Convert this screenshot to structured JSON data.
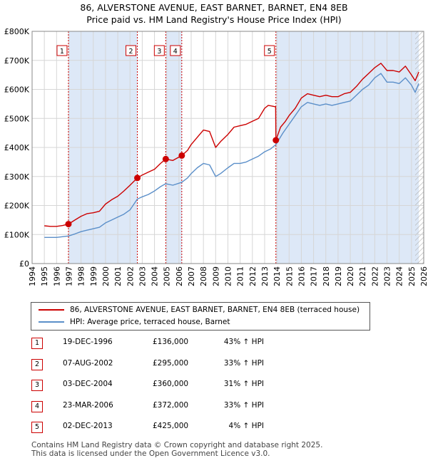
{
  "chart_data": {
    "type": "line",
    "title": "86, ALVERSTONE AVENUE, EAST BARNET, BARNET, EN4 8EB",
    "subtitle": "Price paid vs. HM Land Registry's House Price Index (HPI)",
    "xlim": [
      1994,
      2026
    ],
    "ylim": [
      0,
      800000
    ],
    "x_ticks": [
      1994,
      1995,
      1996,
      1997,
      1998,
      1999,
      2000,
      2001,
      2002,
      2003,
      2004,
      2005,
      2006,
      2007,
      2008,
      2009,
      2010,
      2011,
      2012,
      2013,
      2014,
      2015,
      2016,
      2017,
      2018,
      2019,
      2020,
      2021,
      2022,
      2023,
      2024,
      2025,
      2026
    ],
    "y_ticks": [
      {
        "value": 0,
        "label": "£0"
      },
      {
        "value": 100000,
        "label": "£100K"
      },
      {
        "value": 200000,
        "label": "£200K"
      },
      {
        "value": 300000,
        "label": "£300K"
      },
      {
        "value": 400000,
        "label": "£400K"
      },
      {
        "value": 500000,
        "label": "£500K"
      },
      {
        "value": 600000,
        "label": "£600K"
      },
      {
        "value": 700000,
        "label": "£700K"
      },
      {
        "value": 800000,
        "label": "£800K"
      }
    ],
    "series": [
      {
        "name": "86, ALVERSTONE AVENUE, EAST BARNET, BARNET, EN4 8EB (terraced house)",
        "color": "#cc0000",
        "points": [
          [
            1995.0,
            130000
          ],
          [
            1995.5,
            128000
          ],
          [
            1996.0,
            128000
          ],
          [
            1996.5,
            131000
          ],
          [
            1996.97,
            136000
          ],
          [
            1997.5,
            150000
          ],
          [
            1998.0,
            163000
          ],
          [
            1998.5,
            172000
          ],
          [
            1999.0,
            175000
          ],
          [
            1999.5,
            180000
          ],
          [
            2000.0,
            205000
          ],
          [
            2000.5,
            220000
          ],
          [
            2001.0,
            232000
          ],
          [
            2001.5,
            250000
          ],
          [
            2002.0,
            270000
          ],
          [
            2002.6,
            295000
          ],
          [
            2003.0,
            305000
          ],
          [
            2003.5,
            315000
          ],
          [
            2004.0,
            325000
          ],
          [
            2004.5,
            345000
          ],
          [
            2004.92,
            360000
          ],
          [
            2005.5,
            355000
          ],
          [
            2006.23,
            372000
          ],
          [
            2006.7,
            390000
          ],
          [
            2007.0,
            410000
          ],
          [
            2007.5,
            435000
          ],
          [
            2008.0,
            460000
          ],
          [
            2008.5,
            455000
          ],
          [
            2009.0,
            400000
          ],
          [
            2009.4,
            420000
          ],
          [
            2010.0,
            445000
          ],
          [
            2010.5,
            470000
          ],
          [
            2011.0,
            475000
          ],
          [
            2011.5,
            480000
          ],
          [
            2012.0,
            490000
          ],
          [
            2012.5,
            500000
          ],
          [
            2013.0,
            535000
          ],
          [
            2013.3,
            545000
          ],
          [
            2013.9,
            540000
          ],
          [
            2013.92,
            425000
          ],
          [
            2014.3,
            470000
          ],
          [
            2014.7,
            490000
          ],
          [
            2015.0,
            510000
          ],
          [
            2015.5,
            535000
          ],
          [
            2016.0,
            570000
          ],
          [
            2016.5,
            585000
          ],
          [
            2017.0,
            580000
          ],
          [
            2017.5,
            575000
          ],
          [
            2018.0,
            580000
          ],
          [
            2018.5,
            575000
          ],
          [
            2019.0,
            575000
          ],
          [
            2019.5,
            585000
          ],
          [
            2020.0,
            590000
          ],
          [
            2020.5,
            610000
          ],
          [
            2021.0,
            635000
          ],
          [
            2021.5,
            655000
          ],
          [
            2022.0,
            675000
          ],
          [
            2022.5,
            690000
          ],
          [
            2023.0,
            665000
          ],
          [
            2023.5,
            665000
          ],
          [
            2024.0,
            660000
          ],
          [
            2024.5,
            680000
          ],
          [
            2025.0,
            650000
          ],
          [
            2025.3,
            630000
          ],
          [
            2025.6,
            660000
          ]
        ]
      },
      {
        "name": "HPI: Average price, terraced house, Barnet",
        "color": "#5b8fc9",
        "points": [
          [
            1995.0,
            90000
          ],
          [
            1995.5,
            90000
          ],
          [
            1996.0,
            90000
          ],
          [
            1996.97,
            95000
          ],
          [
            1997.5,
            102000
          ],
          [
            1998.0,
            110000
          ],
          [
            1998.5,
            115000
          ],
          [
            1999.0,
            120000
          ],
          [
            1999.5,
            125000
          ],
          [
            2000.0,
            140000
          ],
          [
            2000.5,
            150000
          ],
          [
            2001.0,
            160000
          ],
          [
            2001.5,
            170000
          ],
          [
            2002.0,
            185000
          ],
          [
            2002.6,
            222000
          ],
          [
            2003.0,
            230000
          ],
          [
            2003.5,
            238000
          ],
          [
            2004.0,
            250000
          ],
          [
            2004.5,
            265000
          ],
          [
            2004.92,
            275000
          ],
          [
            2005.5,
            270000
          ],
          [
            2006.23,
            280000
          ],
          [
            2006.7,
            295000
          ],
          [
            2007.0,
            310000
          ],
          [
            2007.5,
            330000
          ],
          [
            2008.0,
            345000
          ],
          [
            2008.5,
            340000
          ],
          [
            2009.0,
            300000
          ],
          [
            2009.4,
            310000
          ],
          [
            2010.0,
            330000
          ],
          [
            2010.5,
            345000
          ],
          [
            2011.0,
            345000
          ],
          [
            2011.5,
            350000
          ],
          [
            2012.0,
            360000
          ],
          [
            2012.5,
            370000
          ],
          [
            2013.0,
            385000
          ],
          [
            2013.5,
            395000
          ],
          [
            2013.92,
            410000
          ],
          [
            2014.5,
            450000
          ],
          [
            2015.0,
            480000
          ],
          [
            2015.5,
            510000
          ],
          [
            2016.0,
            540000
          ],
          [
            2016.5,
            555000
          ],
          [
            2017.0,
            550000
          ],
          [
            2017.5,
            545000
          ],
          [
            2018.0,
            550000
          ],
          [
            2018.5,
            545000
          ],
          [
            2019.0,
            550000
          ],
          [
            2019.5,
            555000
          ],
          [
            2020.0,
            560000
          ],
          [
            2020.5,
            580000
          ],
          [
            2021.0,
            600000
          ],
          [
            2021.5,
            615000
          ],
          [
            2022.0,
            640000
          ],
          [
            2022.5,
            655000
          ],
          [
            2023.0,
            625000
          ],
          [
            2023.5,
            625000
          ],
          [
            2024.0,
            620000
          ],
          [
            2024.5,
            640000
          ],
          [
            2025.0,
            615000
          ],
          [
            2025.3,
            590000
          ],
          [
            2025.6,
            620000
          ]
        ]
      }
    ],
    "sales": [
      {
        "id": "1",
        "date": "19-DEC-1996",
        "x": 1996.97,
        "price": 136000,
        "price_label": "£136,000",
        "hpi": "43% ↑ HPI"
      },
      {
        "id": "2",
        "date": "07-AUG-2002",
        "x": 2002.6,
        "price": 295000,
        "price_label": "£295,000",
        "hpi": "33% ↑ HPI"
      },
      {
        "id": "3",
        "date": "03-DEC-2004",
        "x": 2004.92,
        "price": 360000,
        "price_label": "£360,000",
        "hpi": "31% ↑ HPI"
      },
      {
        "id": "4",
        "date": "23-MAR-2006",
        "x": 2006.23,
        "price": 372000,
        "price_label": "£372,000",
        "hpi": "33% ↑ HPI"
      },
      {
        "id": "5",
        "date": "02-DEC-2013",
        "x": 2013.92,
        "price": 425000,
        "price_label": "£425,000",
        "hpi": "4% ↑ HPI"
      }
    ],
    "shaded_spans": [
      [
        1996.97,
        2002.6
      ],
      [
        2004.92,
        2006.23
      ],
      [
        2013.92,
        2025.6
      ]
    ],
    "hatched_span": [
      2025.3,
      2026
    ],
    "grid": true,
    "legend_position": "below"
  },
  "legend": {
    "property_label": "86, ALVERSTONE AVENUE, EAST BARNET, BARNET, EN4 8EB (terraced house)",
    "hpi_label": "HPI: Average price, terraced house, Barnet",
    "property_color": "#cc0000",
    "hpi_color": "#5b8fc9"
  },
  "footer": {
    "line1": "Contains HM Land Registry data © Crown copyright and database right 2025.",
    "line2": "This data is licensed under the Open Government Licence v3.0."
  }
}
